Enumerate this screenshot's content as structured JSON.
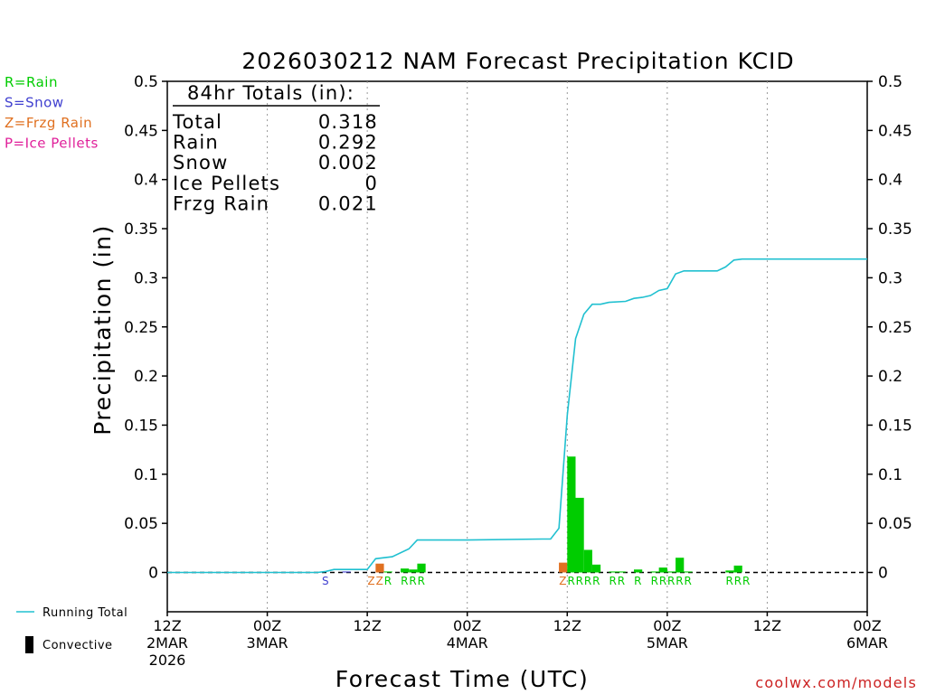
{
  "chart_data": {
    "type": "bar",
    "title": "2026030212 NAM Forecast Precipitation KCID",
    "xlabel": "Forecast Time (UTC)",
    "ylabel": "Precipitation (in)",
    "ylim": [
      -0.04,
      0.5
    ],
    "grid": "vertical dotted at 12-hour steps",
    "x_unit": "forecast hour from 2026-03-02 12Z",
    "xlim": [
      0,
      84
    ],
    "x_ticks": [
      {
        "hour": 0,
        "lines": [
          "12Z",
          "2MAR",
          "2026"
        ]
      },
      {
        "hour": 12,
        "lines": [
          "00Z",
          "3MAR"
        ]
      },
      {
        "hour": 24,
        "lines": [
          "12Z"
        ]
      },
      {
        "hour": 36,
        "lines": [
          "00Z",
          "4MAR"
        ]
      },
      {
        "hour": 48,
        "lines": [
          "12Z"
        ]
      },
      {
        "hour": 60,
        "lines": [
          "00Z",
          "5MAR"
        ]
      },
      {
        "hour": 72,
        "lines": [
          "12Z"
        ]
      },
      {
        "hour": 84,
        "lines": [
          "00Z",
          "6MAR"
        ]
      }
    ],
    "y_ticks": [
      "0.5",
      "0.45",
      "0.4",
      "0.35",
      "0.3",
      "0.25",
      "0.2",
      "0.15",
      "0.1",
      "0.05",
      "0"
    ],
    "precip_type_legend": [
      {
        "text": "R=Rain",
        "color": "#00cc00"
      },
      {
        "text": "S=Snow",
        "color": "#4040d0"
      },
      {
        "text": "Z=Frzg Rain",
        "color": "#e07020"
      },
      {
        "text": "P=Ice Pellets",
        "color": "#e0209a"
      }
    ],
    "line_legend": [
      {
        "text": "Running Total",
        "color": "#20c0d0"
      },
      {
        "text": "Convective",
        "color": "#000000"
      }
    ],
    "totals_box": {
      "header": "84hr Totals (in):",
      "rows": [
        {
          "label": "Total",
          "value": "0.318"
        },
        {
          "label": "Rain",
          "value": "0.292"
        },
        {
          "label": "Snow",
          "value": "0.002"
        },
        {
          "label": "Ice Pellets",
          "value": "0"
        },
        {
          "label": "Frzg Rain",
          "value": "0.021"
        }
      ]
    },
    "bars": [
      {
        "hour": 21,
        "value": 0.001,
        "type": "S"
      },
      {
        "hour": 24,
        "value": 0.0,
        "type": "Z"
      },
      {
        "hour": 25,
        "value": 0.009,
        "type": "Z"
      },
      {
        "hour": 26,
        "value": 0.001,
        "type": "R"
      },
      {
        "hour": 28,
        "value": 0.004,
        "type": "R"
      },
      {
        "hour": 29,
        "value": 0.003,
        "type": "R"
      },
      {
        "hour": 30,
        "value": 0.009,
        "type": "R"
      },
      {
        "hour": 47,
        "value": 0.01,
        "type": "Z"
      },
      {
        "hour": 48,
        "value": 0.118,
        "type": "R"
      },
      {
        "hour": 49,
        "value": 0.076,
        "type": "R"
      },
      {
        "hour": 50,
        "value": 0.023,
        "type": "R"
      },
      {
        "hour": 51,
        "value": 0.008,
        "type": "R"
      },
      {
        "hour": 53,
        "value": 0.001,
        "type": "R"
      },
      {
        "hour": 54,
        "value": 0.001,
        "type": "R"
      },
      {
        "hour": 56,
        "value": 0.003,
        "type": "R"
      },
      {
        "hour": 58,
        "value": 0.001,
        "type": "R"
      },
      {
        "hour": 59,
        "value": 0.005,
        "type": "R"
      },
      {
        "hour": 60,
        "value": 0.001,
        "type": "R"
      },
      {
        "hour": 61,
        "value": 0.015,
        "type": "R"
      },
      {
        "hour": 62,
        "value": 0.001,
        "type": "R"
      },
      {
        "hour": 67,
        "value": 0.002,
        "type": "R"
      },
      {
        "hour": 68,
        "value": 0.007,
        "type": "R"
      }
    ],
    "bar_colors": {
      "R": "#00cc00",
      "S": "#4040d0",
      "Z": "#e07020",
      "P": "#e0209a"
    },
    "type_letters": [
      {
        "hour": 19,
        "text": "S",
        "type": "S"
      },
      {
        "hour": 24.5,
        "text": "Z",
        "type": "Z"
      },
      {
        "hour": 25.5,
        "text": "Z",
        "type": "Z"
      },
      {
        "hour": 26.5,
        "text": "R",
        "type": "R"
      },
      {
        "hour": 28.5,
        "text": "R",
        "type": "R"
      },
      {
        "hour": 29.5,
        "text": "R",
        "type": "R"
      },
      {
        "hour": 30.5,
        "text": "R",
        "type": "R"
      },
      {
        "hour": 47.5,
        "text": "Z",
        "type": "Z"
      },
      {
        "hour": 48.5,
        "text": "R",
        "type": "R"
      },
      {
        "hour": 49.5,
        "text": "R",
        "type": "R"
      },
      {
        "hour": 50.5,
        "text": "R",
        "type": "R"
      },
      {
        "hour": 51.5,
        "text": "R",
        "type": "R"
      },
      {
        "hour": 53.5,
        "text": "R",
        "type": "R"
      },
      {
        "hour": 54.5,
        "text": "R",
        "type": "R"
      },
      {
        "hour": 56.5,
        "text": "R",
        "type": "R"
      },
      {
        "hour": 58.5,
        "text": "R",
        "type": "R"
      },
      {
        "hour": 59.5,
        "text": "R",
        "type": "R"
      },
      {
        "hour": 60.5,
        "text": "R",
        "type": "R"
      },
      {
        "hour": 61.5,
        "text": "R",
        "type": "R"
      },
      {
        "hour": 62.5,
        "text": "R",
        "type": "R"
      },
      {
        "hour": 67.5,
        "text": "R",
        "type": "R"
      },
      {
        "hour": 68.5,
        "text": "R",
        "type": "R"
      },
      {
        "hour": 69.5,
        "text": "R",
        "type": "R"
      }
    ],
    "running_total": [
      [
        0,
        0.0
      ],
      [
        18,
        0.0
      ],
      [
        19,
        0.001
      ],
      [
        20,
        0.003
      ],
      [
        22,
        0.003
      ],
      [
        24,
        0.003
      ],
      [
        25,
        0.014
      ],
      [
        27,
        0.016
      ],
      [
        29,
        0.024
      ],
      [
        30,
        0.033
      ],
      [
        36,
        0.033
      ],
      [
        45,
        0.034
      ],
      [
        46,
        0.034
      ],
      [
        47,
        0.045
      ],
      [
        48,
        0.16
      ],
      [
        49,
        0.238
      ],
      [
        50,
        0.263
      ],
      [
        51,
        0.273
      ],
      [
        52,
        0.273
      ],
      [
        53,
        0.275
      ],
      [
        55,
        0.276
      ],
      [
        56,
        0.279
      ],
      [
        57,
        0.28
      ],
      [
        58,
        0.282
      ],
      [
        59,
        0.287
      ],
      [
        60,
        0.289
      ],
      [
        61,
        0.304
      ],
      [
        62,
        0.307
      ],
      [
        66,
        0.307
      ],
      [
        67,
        0.311
      ],
      [
        68,
        0.318
      ],
      [
        69,
        0.319
      ],
      [
        84,
        0.319
      ]
    ],
    "watermark": "coolwx.com/models"
  }
}
